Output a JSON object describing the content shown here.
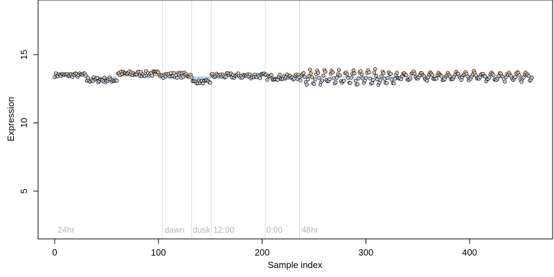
{
  "chart_data": {
    "type": "scatter",
    "xlabel": "Sample index",
    "ylabel": "Expression",
    "xlim": [
      -16,
      480
    ],
    "ylim": [
      1.5,
      19
    ],
    "x_ticks": [
      0,
      100,
      200,
      300,
      400
    ],
    "y_ticks": [
      5,
      10,
      15
    ],
    "grid": false,
    "legend": "none",
    "colors": {
      "point_stroke": "#000000",
      "above_trend": "#e9a15a",
      "below_trend": "#9cc0ea",
      "vline": "#dcdcdc",
      "annotation": "#b5b5b5"
    },
    "vlines": [
      104,
      132,
      151,
      203,
      236
    ],
    "annotations": [
      {
        "label": "24hr",
        "x": 3,
        "y": 1.95
      },
      {
        "label": "dawn",
        "x": 106,
        "y": 1.95
      },
      {
        "label": "dusk",
        "x": 133,
        "y": 1.95
      },
      {
        "label": "12:00",
        "x": 153,
        "y": 1.95
      },
      {
        "label": "0:00",
        "x": 204,
        "y": 1.95
      },
      {
        "label": "48hr",
        "x": 238,
        "y": 1.95
      }
    ],
    "n_points": 461,
    "y_range_note": "points range roughly 12.7 to 14.0",
    "segments": [
      {
        "x": [
          0,
          30
        ],
        "mean": 13.5,
        "amplitude": 0.15
      },
      {
        "x": [
          31,
          60
        ],
        "mean": 13.15,
        "amplitude": 0.2
      },
      {
        "x": [
          61,
          104
        ],
        "mean": 13.6,
        "amplitude": 0.2
      },
      {
        "x": [
          105,
          132
        ],
        "mean": 13.5,
        "amplitude": 0.2
      },
      {
        "x": [
          133,
          150
        ],
        "mean": 13.0,
        "amplitude": 0.12
      },
      {
        "x": [
          151,
          203
        ],
        "mean": 13.45,
        "amplitude": 0.2
      },
      {
        "x": [
          204,
          236
        ],
        "mean": 13.35,
        "amplitude": 0.2
      },
      {
        "x": [
          237,
          330
        ],
        "mean": 13.3,
        "amplitude": 0.55
      },
      {
        "x": [
          331,
          460
        ],
        "mean": 13.4,
        "amplitude": 0.35
      }
    ]
  }
}
